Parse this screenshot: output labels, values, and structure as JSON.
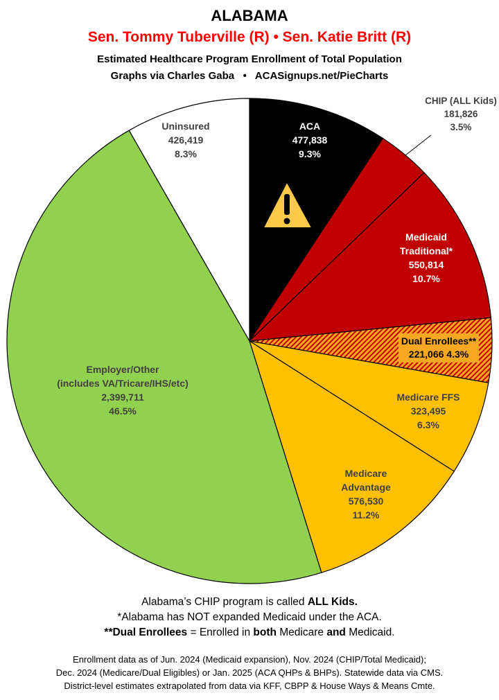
{
  "header": {
    "title": "ALABAMA",
    "senators": "Sen. Tommy Tuberville (R) • Sen. Katie Britt (R)",
    "subtitle": "Estimated Healthcare Program Enrollment of Total Population",
    "credit": "Graphs via Charles Gaba   •   ACASignups.net/PieCharts"
  },
  "chart_data": {
    "type": "pie",
    "start": "top, clockwise",
    "slices": [
      {
        "name": "ACA",
        "value": 477838,
        "pct_label": "9.3%",
        "color": "#000000",
        "icon": "warning-icon"
      },
      {
        "name": "CHIP (ALL Kids)",
        "value": 181826,
        "pct_label": "3.5%",
        "color": "#c00000"
      },
      {
        "name": "Medicaid Traditional*",
        "value": 550814,
        "pct_label": "10.7%",
        "color": "#c00000"
      },
      {
        "name": "Dual Enrollees**",
        "value": 221066,
        "pct_label": "4.3%",
        "color": "#f7a823",
        "pattern": "red-hatch"
      },
      {
        "name": "Medicare FFS",
        "value": 323495,
        "pct_label": "6.3%",
        "color": "#ffc000"
      },
      {
        "name": "Medicare Advantage",
        "value": 576530,
        "pct_label": "11.2%",
        "color": "#ffc000"
      },
      {
        "name": "Employer/Other (includes VA/Tricare/IHS/etc)",
        "value": 2399711,
        "pct_label": "46.5%",
        "color": "#92d050"
      },
      {
        "name": "Uninsured",
        "value": 426419,
        "pct_label": "8.3%",
        "color": "#ffffff"
      }
    ],
    "labels": {
      "aca": [
        "ACA",
        "477,838",
        "9.3%"
      ],
      "chip": [
        "CHIP (ALL Kids)",
        "181,826",
        "3.5%"
      ],
      "medicaid": [
        "Medicaid",
        "Traditional*",
        "550,814",
        "10.7%"
      ],
      "dual": [
        "Dual Enrollees**",
        "221,066 4.3%"
      ],
      "ffs": [
        "Medicare FFS",
        "323,495",
        "6.3%"
      ],
      "ma": [
        "Medicare",
        "Advantage",
        "576,530",
        "11.2%"
      ],
      "employer": [
        "Employer/Other",
        "(includes VA/Tricare/IHS/etc)",
        "2,399,711",
        "46.5%"
      ],
      "uninsured": [
        "Uninsured",
        "426,419",
        "8.3%"
      ]
    }
  },
  "notes": {
    "chip_a": "Alabama’s CHIP program is called ",
    "chip_b": "ALL Kids.",
    "medicaid": "*Alabama has NOT expanded Medicaid under the ACA.",
    "dual_a": "**Dual Enrollees",
    "dual_b": " = Enrolled in ",
    "dual_c": "both",
    "dual_d": " Medicare ",
    "dual_e": "and",
    "dual_f": " Medicaid."
  },
  "source": [
    "Enrollment data as of Jun. 2024 (Medicaid expansion), Nov. 2024 (CHIP/Total Medicaid);",
    "Dec. 2024 (Medicare/Dual Eligibles) or Jan. 2025 (ACA QHPs & BHPs). Statewide data via CMS.",
    "District-level estimates extrapolated from data via KFF, CBPP & House Ways & Means Cmte."
  ]
}
